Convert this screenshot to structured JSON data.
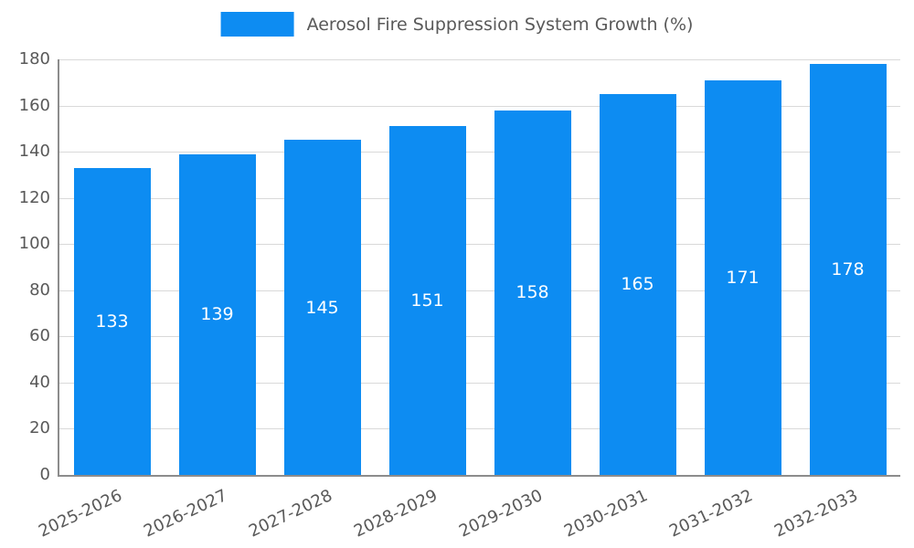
{
  "chart_data": {
    "type": "bar",
    "title": "Aerosol Fire Suppression System Growth (%)",
    "categories": [
      "2025-2026",
      "2026-2027",
      "2027-2028",
      "2028-2029",
      "2029-2030",
      "2030-2031",
      "2031-2032",
      "2032-2033"
    ],
    "values": [
      133,
      139,
      145,
      151,
      158,
      165,
      171,
      178
    ],
    "ylim": [
      0,
      180
    ],
    "ytick_step": 20,
    "yticks": [
      0,
      20,
      40,
      60,
      80,
      100,
      120,
      140,
      160,
      180
    ],
    "bar_color": "#0d8cf2",
    "grid": true,
    "legend_position": "top-center",
    "value_labels": "inside-center",
    "value_label_color": "#ffffff",
    "tick_label_color": "#595959",
    "grid_color": "#d9d9d9",
    "axis_color": "#8c8c8c",
    "x_label_rotation_deg": -25
  }
}
